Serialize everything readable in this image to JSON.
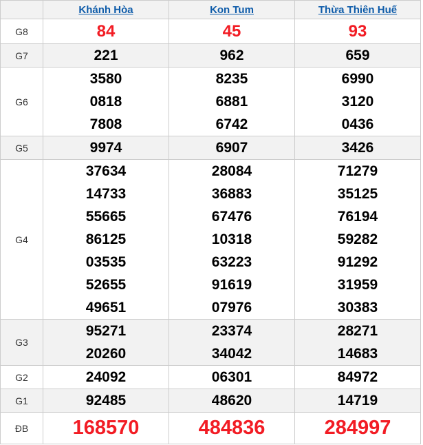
{
  "colors": {
    "accent_red": "#f21c24",
    "link_blue": "#0d5ba9",
    "alt_row_bg": "#f2f2f2",
    "border_gray": "#cccccc",
    "number_black": "#000000",
    "label_gray": "#333333"
  },
  "table": {
    "columns": [
      "Khánh Hòa",
      "Kon Tum",
      "Thừa Thiên Huế"
    ],
    "rows": [
      {
        "label": "G8",
        "highlight": "medium",
        "values": [
          [
            "84"
          ],
          [
            "45"
          ],
          [
            "93"
          ]
        ]
      },
      {
        "label": "G7",
        "values": [
          [
            "221"
          ],
          [
            "962"
          ],
          [
            "659"
          ]
        ]
      },
      {
        "label": "G6",
        "values": [
          [
            "3580",
            "0818",
            "7808"
          ],
          [
            "8235",
            "6881",
            "6742"
          ],
          [
            "6990",
            "3120",
            "0436"
          ]
        ]
      },
      {
        "label": "G5",
        "values": [
          [
            "9974"
          ],
          [
            "6907"
          ],
          [
            "3426"
          ]
        ]
      },
      {
        "label": "G4",
        "values": [
          [
            "37634",
            "14733",
            "55665",
            "86125",
            "03535",
            "52655",
            "49651"
          ],
          [
            "28084",
            "36883",
            "67476",
            "10318",
            "63223",
            "91619",
            "07976"
          ],
          [
            "71279",
            "35125",
            "76194",
            "59282",
            "91292",
            "31959",
            "30383"
          ]
        ]
      },
      {
        "label": "G3",
        "values": [
          [
            "95271",
            "20260"
          ],
          [
            "23374",
            "34042"
          ],
          [
            "28271",
            "14683"
          ]
        ]
      },
      {
        "label": "G2",
        "values": [
          [
            "24092"
          ],
          [
            "06301"
          ],
          [
            "84972"
          ]
        ]
      },
      {
        "label": "G1",
        "values": [
          [
            "92485"
          ],
          [
            "48620"
          ],
          [
            "14719"
          ]
        ]
      },
      {
        "label": "ĐB",
        "highlight": "large",
        "values": [
          [
            "168570"
          ],
          [
            "484836"
          ],
          [
            "284997"
          ]
        ]
      }
    ]
  }
}
